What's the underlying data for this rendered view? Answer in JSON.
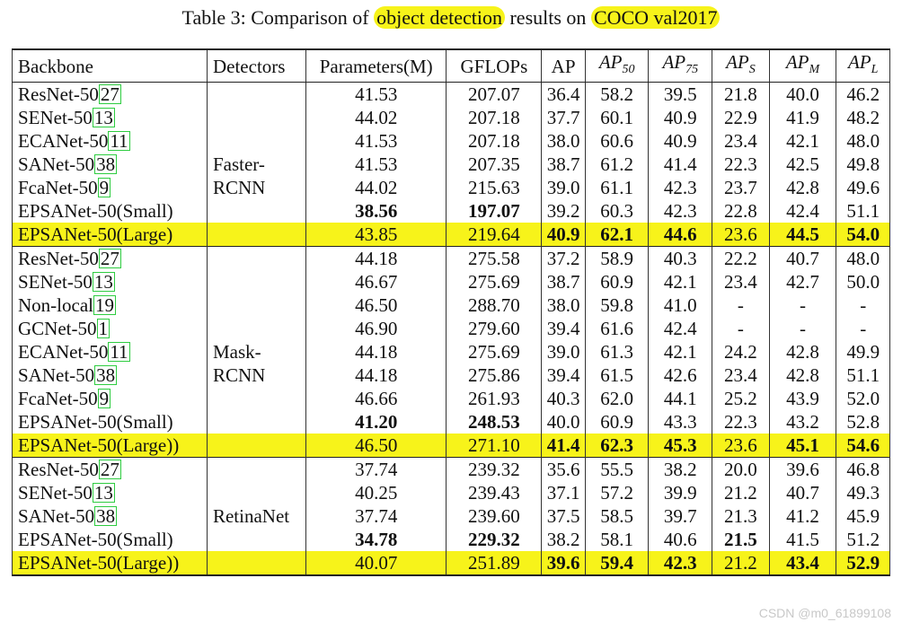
{
  "caption": {
    "prefix": "Table 3: Comparison of ",
    "highlight1": "object detection",
    "middle": " results on ",
    "highlight2": "COCO val2017"
  },
  "headers": {
    "backbone": "Backbone",
    "detectors": "Detectors",
    "params": "Parameters(M)",
    "gflops": "GFLOPs",
    "ap": "AP",
    "ap50": "50",
    "ap75": "75",
    "aps": "S",
    "apm": "M",
    "apl": "L",
    "ap_symbol": "AP"
  },
  "groups": [
    {
      "detector_line1": "Faster-",
      "detector_line2": "RCNN",
      "rows": [
        {
          "name": "ResNet-50",
          "ref": "27",
          "params": "41.53",
          "gflops": "207.07",
          "ap": "36.4",
          "ap50": "58.2",
          "ap75": "39.5",
          "aps": "21.8",
          "apm": "40.0",
          "apl": "46.2"
        },
        {
          "name": "SENet-50",
          "ref": "13",
          "params": "44.02",
          "gflops": "207.18",
          "ap": "37.7",
          "ap50": "60.1",
          "ap75": "40.9",
          "aps": "22.9",
          "apm": "41.9",
          "apl": "48.2"
        },
        {
          "name": "ECANet-50",
          "ref": "11",
          "params": "41.53",
          "gflops": "207.18",
          "ap": "38.0",
          "ap50": "60.6",
          "ap75": "40.9",
          "aps": "23.4",
          "apm": "42.1",
          "apl": "48.0"
        },
        {
          "name": "SANet-50",
          "ref": "38",
          "params": "41.53",
          "gflops": "207.35",
          "ap": "38.7",
          "ap50": "61.2",
          "ap75": "41.4",
          "aps": "22.3",
          "apm": "42.5",
          "apl": "49.8"
        },
        {
          "name": "FcaNet-50",
          "ref": "9",
          "params": "44.02",
          "gflops": "215.63",
          "ap": "39.0",
          "ap50": "61.1",
          "ap75": "42.3",
          "aps": "23.7",
          "apm": "42.8",
          "apl": "49.6"
        },
        {
          "name": "EPSANet-50(Small)",
          "ref": "",
          "params": "38.56",
          "gflops": "197.07",
          "ap": "39.2",
          "ap50": "60.3",
          "ap75": "42.3",
          "aps": "22.8",
          "apm": "42.4",
          "apl": "51.1",
          "bold": [
            "params",
            "gflops"
          ]
        },
        {
          "name": "EPSANet-50(Large)",
          "ref": "",
          "params": "43.85",
          "gflops": "219.64",
          "ap": "40.9",
          "ap50": "62.1",
          "ap75": "44.6",
          "aps": "23.6",
          "apm": "44.5",
          "apl": "54.0",
          "bold": [
            "ap",
            "ap50",
            "ap75",
            "apm",
            "apl"
          ],
          "highlight": true
        }
      ]
    },
    {
      "detector_line1": "Mask-",
      "detector_line2": "RCNN",
      "rows": [
        {
          "name": "ResNet-50",
          "ref": "27",
          "params": "44.18",
          "gflops": "275.58",
          "ap": "37.2",
          "ap50": "58.9",
          "ap75": "40.3",
          "aps": "22.2",
          "apm": "40.7",
          "apl": "48.0"
        },
        {
          "name": "SENet-50",
          "ref": "13",
          "params": "46.67",
          "gflops": "275.69",
          "ap": "38.7",
          "ap50": "60.9",
          "ap75": "42.1",
          "aps": "23.4",
          "apm": "42.7",
          "apl": "50.0"
        },
        {
          "name": "Non-local",
          "ref": "19",
          "params": "46.50",
          "gflops": "288.70",
          "ap": "38.0",
          "ap50": "59.8",
          "ap75": "41.0",
          "aps": "-",
          "apm": "-",
          "apl": "-"
        },
        {
          "name": "GCNet-50",
          "ref": "1",
          "params": "46.90",
          "gflops": "279.60",
          "ap": "39.4",
          "ap50": "61.6",
          "ap75": "42.4",
          "aps": "-",
          "apm": "-",
          "apl": "-"
        },
        {
          "name": "ECANet-50",
          "ref": "11",
          "params": "44.18",
          "gflops": "275.69",
          "ap": "39.0",
          "ap50": "61.3",
          "ap75": "42.1",
          "aps": "24.2",
          "apm": "42.8",
          "apl": "49.9"
        },
        {
          "name": "SANet-50",
          "ref": "38",
          "params": "44.18",
          "gflops": "275.86",
          "ap": "39.4",
          "ap50": "61.5",
          "ap75": "42.6",
          "aps": "23.4",
          "apm": "42.8",
          "apl": "51.1"
        },
        {
          "name": "FcaNet-50",
          "ref": "9",
          "params": "46.66",
          "gflops": "261.93",
          "ap": "40.3",
          "ap50": "62.0",
          "ap75": "44.1",
          "aps": "25.2",
          "apm": "43.9",
          "apl": "52.0"
        },
        {
          "name": "EPSANet-50(Small)",
          "ref": "",
          "params": "41.20",
          "gflops": "248.53",
          "ap": "40.0",
          "ap50": "60.9",
          "ap75": "43.3",
          "aps": "22.3",
          "apm": "43.2",
          "apl": "52.8",
          "bold": [
            "params",
            "gflops"
          ]
        },
        {
          "name": "EPSANet-50(Large))",
          "ref": "",
          "params": "46.50",
          "gflops": "271.10",
          "ap": "41.4",
          "ap50": "62.3",
          "ap75": "45.3",
          "aps": "23.6",
          "apm": "45.1",
          "apl": "54.6",
          "bold": [
            "ap",
            "ap50",
            "ap75",
            "apm",
            "apl"
          ],
          "highlight": true
        }
      ]
    },
    {
      "detector_line1": "RetinaNet",
      "detector_line2": "",
      "rows": [
        {
          "name": "ResNet-50",
          "ref": "27",
          "params": "37.74",
          "gflops": "239.32",
          "ap": "35.6",
          "ap50": "55.5",
          "ap75": "38.2",
          "aps": "20.0",
          "apm": "39.6",
          "apl": "46.8"
        },
        {
          "name": "SENet-50",
          "ref": "13",
          "params": "40.25",
          "gflops": "239.43",
          "ap": "37.1",
          "ap50": "57.2",
          "ap75": "39.9",
          "aps": "21.2",
          "apm": "40.7",
          "apl": "49.3"
        },
        {
          "name": "SANet-50",
          "ref": "38",
          "params": "37.74",
          "gflops": "239.60",
          "ap": "37.5",
          "ap50": "58.5",
          "ap75": "39.7",
          "aps": "21.3",
          "apm": "41.2",
          "apl": "45.9"
        },
        {
          "name": "EPSANet-50(Small)",
          "ref": "",
          "params": "34.78",
          "gflops": "229.32",
          "ap": "38.2",
          "ap50": "58.1",
          "ap75": "40.6",
          "aps": "21.5",
          "apm": "41.5",
          "apl": "51.2",
          "bold": [
            "params",
            "gflops",
            "aps"
          ]
        },
        {
          "name": "EPSANet-50(Large))",
          "ref": "",
          "params": "40.07",
          "gflops": "251.89",
          "ap": "39.6",
          "ap50": "59.4",
          "ap75": "42.3",
          "aps": "21.2",
          "apm": "43.4",
          "apl": "52.9",
          "bold": [
            "ap",
            "ap50",
            "ap75",
            "apm",
            "apl"
          ],
          "highlight": true
        }
      ]
    }
  ],
  "watermark": "CSDN @m0_61899108",
  "colors": {
    "highlight": "#f7f31a",
    "ref_box": "#2ecc40"
  }
}
